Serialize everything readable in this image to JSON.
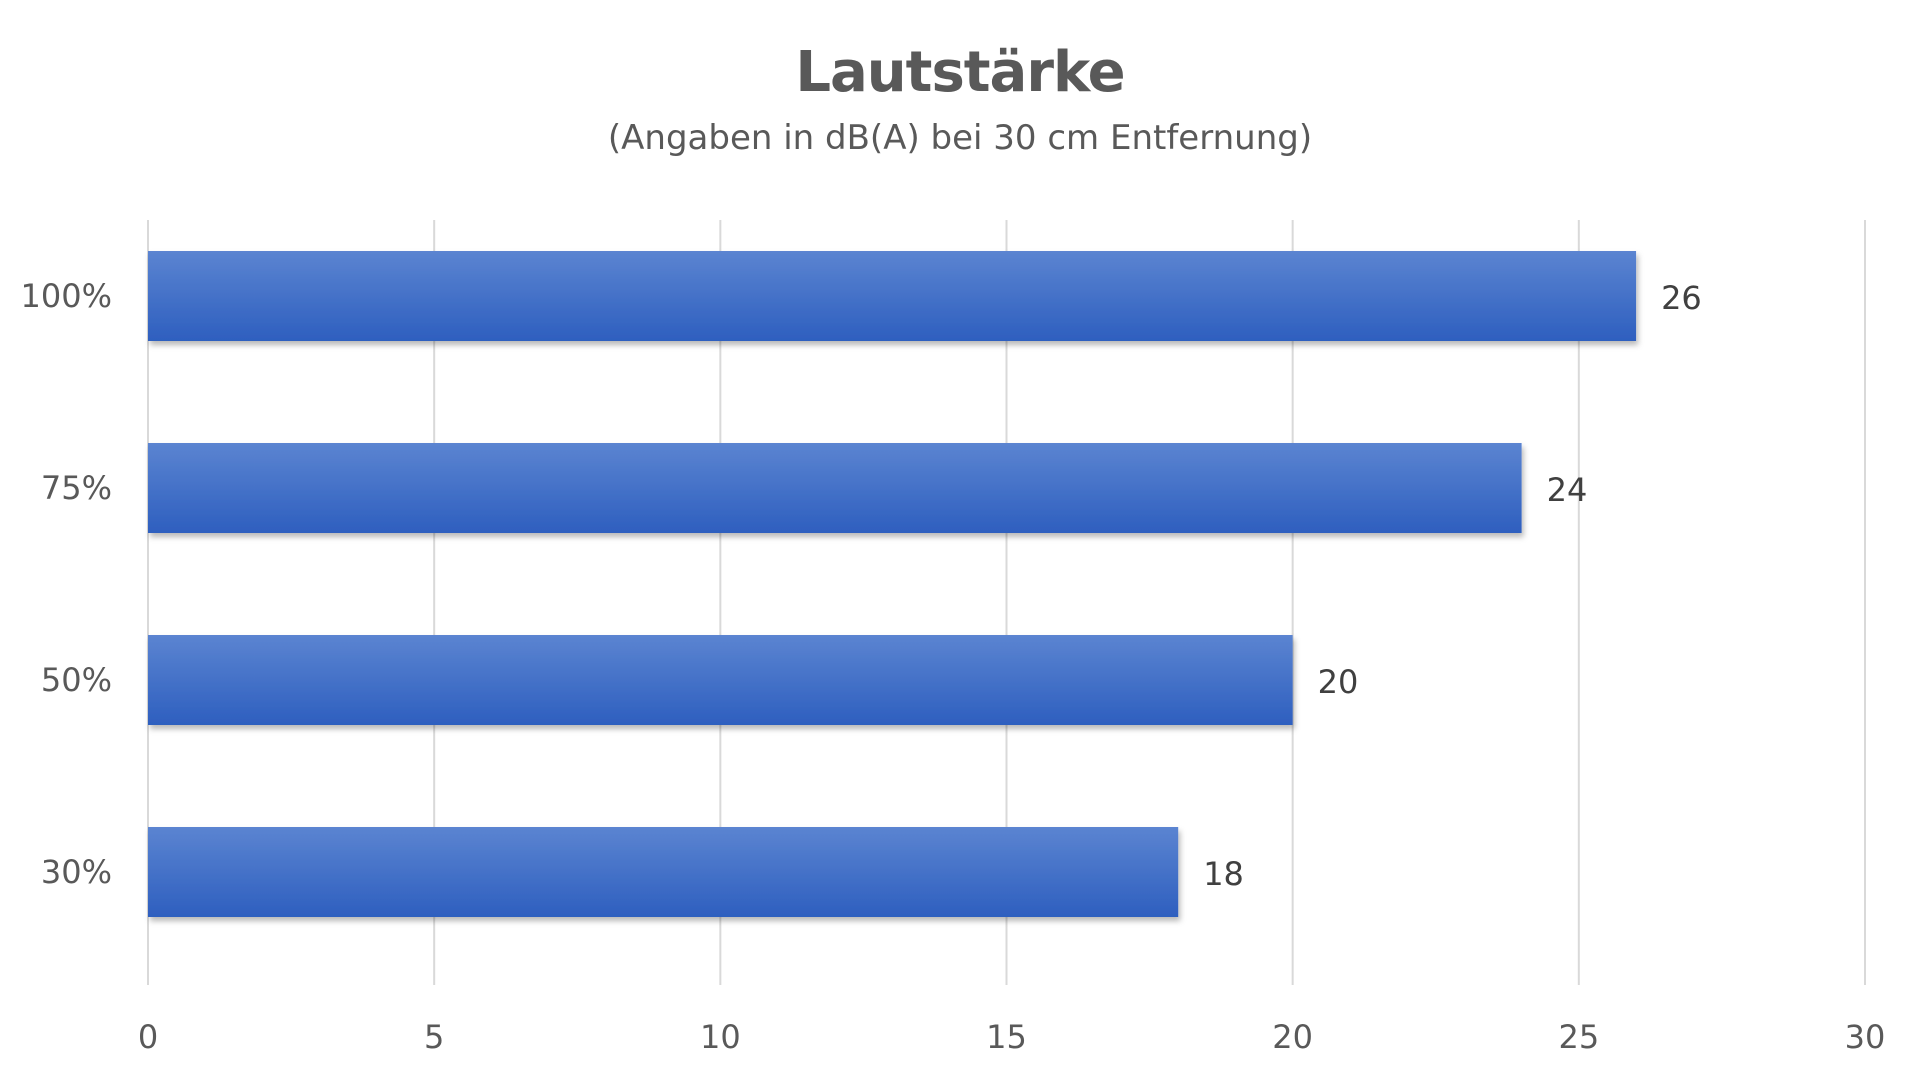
{
  "chart_data": {
    "type": "bar",
    "orientation": "horizontal",
    "title": "Lautstärke",
    "subtitle": "(Angaben in dB(A) bei 30 cm Entfernung)",
    "categories": [
      "100%",
      "75%",
      "50%",
      "30%"
    ],
    "values": [
      26,
      24,
      20,
      18
    ],
    "data_labels": [
      "26",
      "24",
      "20",
      "18"
    ],
    "xlim": [
      0,
      30
    ],
    "x_ticks": [
      0,
      5,
      10,
      15,
      20,
      25,
      30
    ],
    "x_tick_labels": [
      "0",
      "5",
      "10",
      "15",
      "20",
      "25",
      "30"
    ],
    "grid": true,
    "legend": "none",
    "colors": {
      "bar_top": "#5b84d1",
      "bar_bottom": "#2e5fbf",
      "grid": "#d9d9d9",
      "text": "#595959"
    }
  }
}
